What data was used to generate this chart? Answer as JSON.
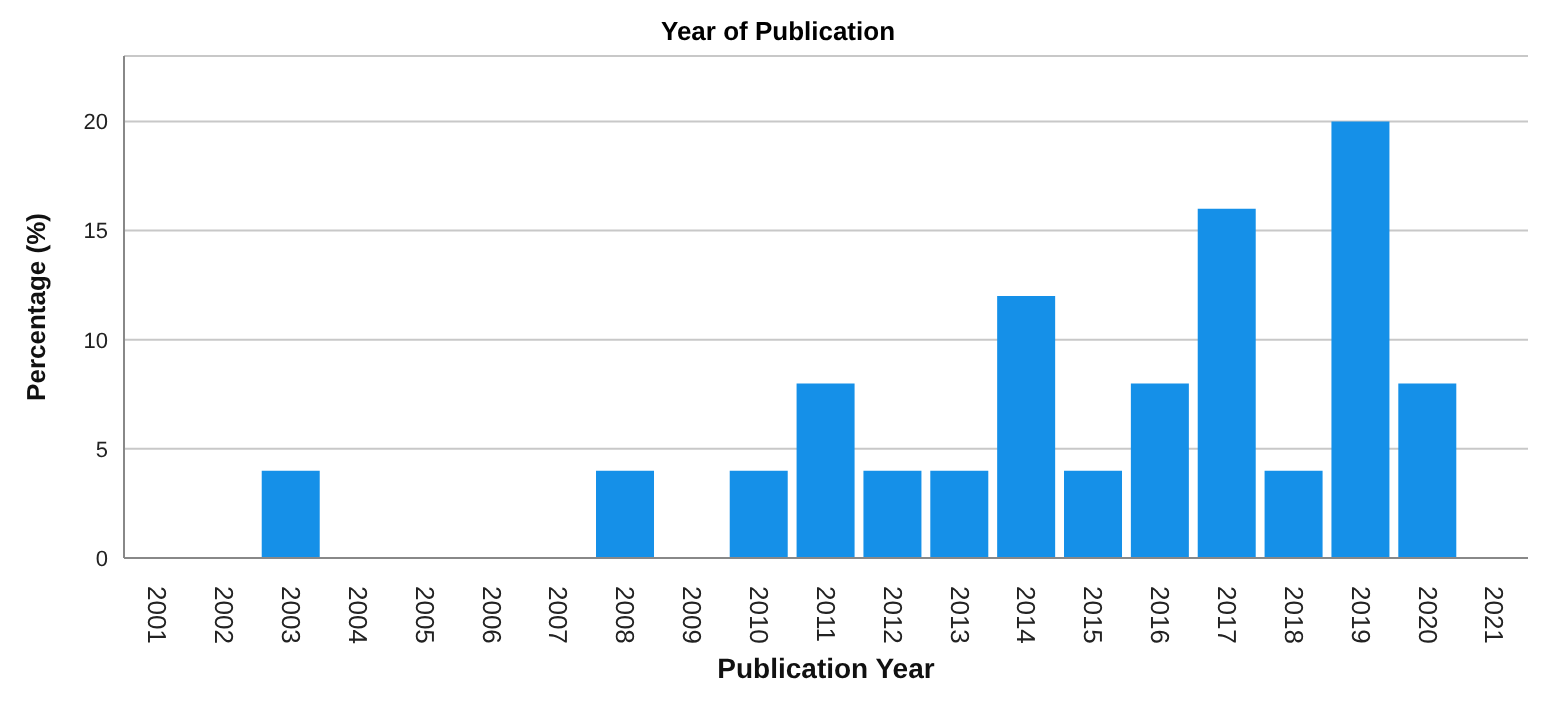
{
  "chart_data": {
    "type": "bar",
    "title": "Year of Publication",
    "xlabel": "Publication Year",
    "ylabel": "Percentage (%)",
    "categories": [
      "2001",
      "2002",
      "2003",
      "2004",
      "2005",
      "2006",
      "2007",
      "2008",
      "2009",
      "2010",
      "2011",
      "2012",
      "2013",
      "2014",
      "2015",
      "2016",
      "2017",
      "2018",
      "2019",
      "2020",
      "2021"
    ],
    "values": [
      0,
      0,
      4,
      0,
      0,
      0,
      0,
      4,
      0,
      4,
      8,
      4,
      4,
      12,
      4,
      8,
      16,
      4,
      20,
      8,
      0
    ],
    "color": "#1590e8",
    "ylim": [
      0,
      23
    ],
    "yticks": [
      0,
      5,
      10,
      15,
      20
    ],
    "grid": "y"
  }
}
